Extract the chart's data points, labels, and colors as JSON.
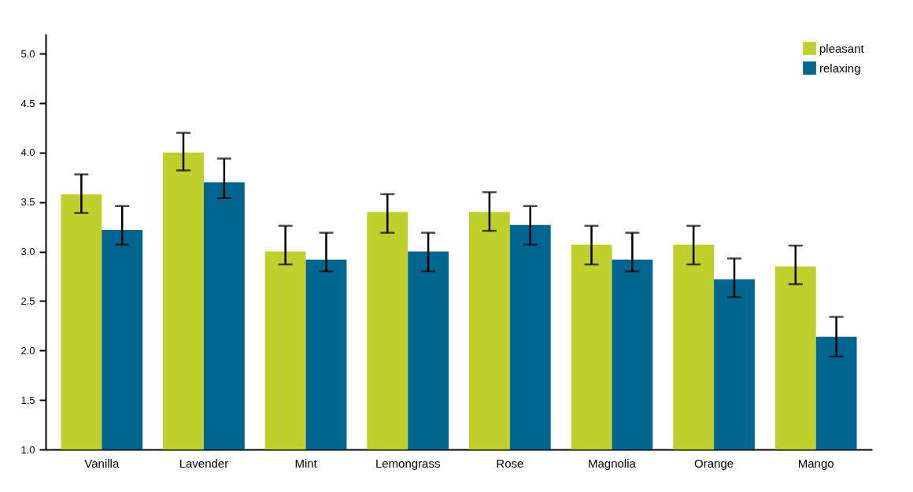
{
  "chart_data": {
    "type": "bar",
    "categories": [
      "Vanilla",
      "Lavender",
      "Mint",
      "Lemongrass",
      "Rose",
      "Magnolia",
      "Orange",
      "Mango"
    ],
    "series": [
      {
        "name": "pleasant",
        "color": "#bfd02c",
        "values": [
          3.58,
          4.0,
          3.0,
          3.4,
          3.4,
          3.07,
          3.07,
          2.85
        ],
        "errors": [
          [
            3.39,
            3.78
          ],
          [
            3.82,
            4.2
          ],
          [
            2.87,
            3.26
          ],
          [
            3.19,
            3.58
          ],
          [
            3.21,
            3.6
          ],
          [
            2.87,
            3.26
          ],
          [
            2.87,
            3.26
          ],
          [
            2.67,
            3.06
          ]
        ]
      },
      {
        "name": "relaxing",
        "color": "#006690",
        "values": [
          3.22,
          3.7,
          2.92,
          3.0,
          3.27,
          2.92,
          2.72,
          2.14
        ],
        "errors": [
          [
            3.07,
            3.46
          ],
          [
            3.54,
            3.94
          ],
          [
            2.8,
            3.19
          ],
          [
            2.8,
            3.19
          ],
          [
            3.07,
            3.46
          ],
          [
            2.8,
            3.19
          ],
          [
            2.54,
            2.93
          ],
          [
            1.94,
            2.34
          ]
        ]
      }
    ],
    "ylim": [
      1,
      5.2
    ],
    "yticks": [
      {
        "value": 1,
        "label": "1.0"
      },
      {
        "value": 1.5,
        "label": "1.5"
      },
      {
        "value": 2,
        "label": "2.0"
      },
      {
        "value": 2.5,
        "label": "2.5"
      },
      {
        "value": 3,
        "label": "3.0"
      },
      {
        "value": 3.5,
        "label": "3.5"
      },
      {
        "value": 4,
        "label": "4.0"
      },
      {
        "value": 4.5,
        "label": "4.5"
      },
      {
        "value": 5,
        "label": "5.0"
      }
    ],
    "grid": false,
    "legend": "top right"
  }
}
